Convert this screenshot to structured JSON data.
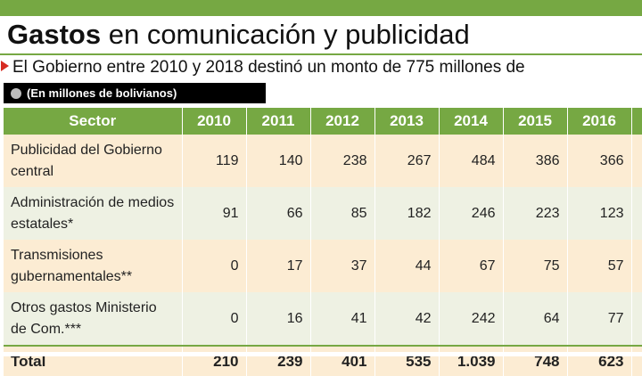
{
  "header": {
    "title_bold": "Gastos",
    "title_rest": " en comunicación y publicidad",
    "subtitle": "El Gobierno entre 2010 y 2018 destinó un monto de 775 millones de",
    "units": "(En millones de bolivianos)"
  },
  "colors": {
    "accent": "#76a843",
    "marker": "#d62b22",
    "row_odd": "#fcecd3",
    "row_even": "#eef1e3"
  },
  "table": {
    "corner": "Sector",
    "years": [
      "2010",
      "2011",
      "2012",
      "2013",
      "2014",
      "2015",
      "2016",
      "2"
    ],
    "rows": [
      {
        "sector": "Publicidad del Gobierno central",
        "values": [
          "119",
          "140",
          "238",
          "267",
          "484",
          "386",
          "366",
          ""
        ]
      },
      {
        "sector": "Administración de medios estatales*",
        "values": [
          "91",
          "66",
          "85",
          "182",
          "246",
          "223",
          "123",
          ""
        ]
      },
      {
        "sector": "Transmisiones gubernamentales**",
        "values": [
          "0",
          "17",
          "37",
          "44",
          "67",
          "75",
          "57",
          ""
        ]
      },
      {
        "sector": "Otros gastos Ministerio de Com.***",
        "values": [
          "0",
          "16",
          "41",
          "42",
          "242",
          "64",
          "77",
          ""
        ]
      }
    ],
    "total_label": "Total",
    "totals": [
      "210",
      "239",
      "401",
      "535",
      "1.039",
      "748",
      "623",
      ""
    ]
  },
  "chart_data": {
    "type": "table",
    "title": "Gastos en comunicación y publicidad",
    "units": "En millones de bolivianos",
    "columns": [
      "Sector",
      "2010",
      "2011",
      "2012",
      "2013",
      "2014",
      "2015",
      "2016"
    ],
    "rows": [
      [
        "Publicidad del Gobierno central",
        119,
        140,
        238,
        267,
        484,
        386,
        366
      ],
      [
        "Administración de medios estatales*",
        91,
        66,
        85,
        182,
        246,
        223,
        123
      ],
      [
        "Transmisiones gubernamentales**",
        0,
        17,
        37,
        44,
        67,
        75,
        57
      ],
      [
        "Otros gastos Ministerio de Com.***",
        0,
        16,
        41,
        42,
        242,
        64,
        77
      ],
      [
        "Total",
        210,
        239,
        401,
        535,
        1039,
        748,
        623
      ]
    ]
  }
}
